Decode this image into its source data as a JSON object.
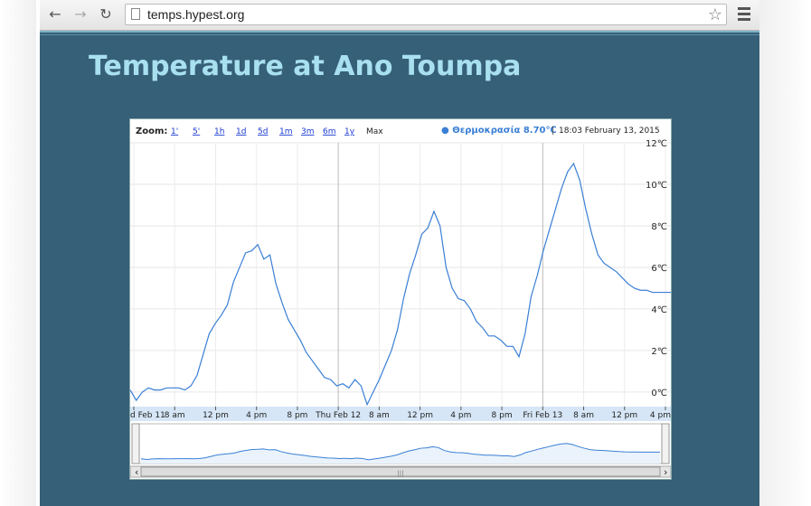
{
  "browser": {
    "url": "temps.hypest.org"
  },
  "page": {
    "title": "Temperature at Ano Toumpa"
  },
  "zoom": {
    "label": "Zoom:",
    "options": [
      "1'",
      "5'",
      "1h",
      "1d",
      "5d",
      "1m",
      "3m",
      "6m",
      "1y",
      "Max"
    ],
    "selected": "Max"
  },
  "legend": {
    "series_label": "● Θερμοκρασία 8.70℃",
    "separator": "|",
    "timestamp": "18:03 February 13, 2015"
  },
  "colors": {
    "series": "#3a7fd5",
    "page_bg": "#365f78",
    "title": "#a8e0f0",
    "axis_band": "#d6e6f6"
  },
  "chart_data": {
    "type": "line",
    "series": [
      {
        "name": "Θερμοκρασία",
        "x": [
          0,
          2,
          4,
          6,
          8,
          10,
          12,
          14,
          16,
          18,
          20,
          22,
          24,
          26,
          28,
          30,
          32,
          34,
          36,
          38,
          40,
          42,
          44,
          46,
          48,
          50,
          52,
          54,
          56,
          58,
          60,
          62,
          64,
          66,
          68,
          70,
          72,
          74,
          76,
          78,
          80,
          82,
          84,
          86,
          88,
          90,
          92,
          94,
          96,
          98,
          100,
          102,
          104,
          106,
          108,
          110,
          112,
          114,
          116,
          118,
          120,
          122,
          124,
          126,
          128,
          130,
          132,
          134,
          136,
          138,
          140,
          142,
          144,
          146,
          148,
          150,
          152,
          154,
          156,
          158,
          160,
          162,
          164,
          166,
          168,
          170,
          172,
          174,
          176,
          178
        ],
        "values": [
          0.1,
          -0.4,
          0.0,
          0.2,
          0.1,
          0.1,
          0.2,
          0.2,
          0.2,
          0.1,
          0.3,
          0.8,
          1.8,
          2.8,
          3.3,
          3.7,
          4.2,
          5.3,
          6.0,
          6.7,
          6.8,
          7.1,
          6.4,
          6.6,
          5.2,
          4.3,
          3.5,
          3.0,
          2.5,
          1.9,
          1.5,
          1.1,
          0.7,
          0.6,
          0.3,
          0.4,
          0.2,
          0.6,
          0.3,
          -0.6,
          0.0,
          0.6,
          1.3,
          2.0,
          3.0,
          4.5,
          5.7,
          6.6,
          7.6,
          7.9,
          8.7,
          8.0,
          6.0,
          5.0,
          4.5,
          4.4,
          4.0,
          3.4,
          3.1,
          2.7,
          2.7,
          2.5,
          2.2,
          2.2,
          1.7,
          2.8,
          4.6,
          5.6,
          6.8,
          7.8,
          8.8,
          9.8,
          10.6,
          11.0,
          10.2,
          8.8,
          7.6,
          6.6,
          6.2,
          6.0,
          5.8,
          5.5,
          5.2,
          5.0,
          4.9,
          4.9,
          4.8,
          4.8,
          4.8,
          4.8
        ]
      }
    ],
    "x_tick_labels": [
      "d Feb 11",
      "8 am",
      "12 pm",
      "4 pm",
      "8 pm",
      "Thu Feb 12",
      "8 am",
      "12 pm",
      "4 pm",
      "8 pm",
      "Fri Feb 13",
      "8 am",
      "12 pm",
      "4 pm"
    ],
    "y_tick_labels": [
      "12℃",
      "10℃",
      "8℃",
      "6℃",
      "4℃",
      "2℃",
      "0℃"
    ],
    "y_ticks": [
      12,
      10,
      8,
      6,
      4,
      2,
      0
    ],
    "xlabel": "",
    "ylabel": "",
    "ylim": [
      -0.7,
      12
    ],
    "grid": true,
    "has_navigator": true
  }
}
